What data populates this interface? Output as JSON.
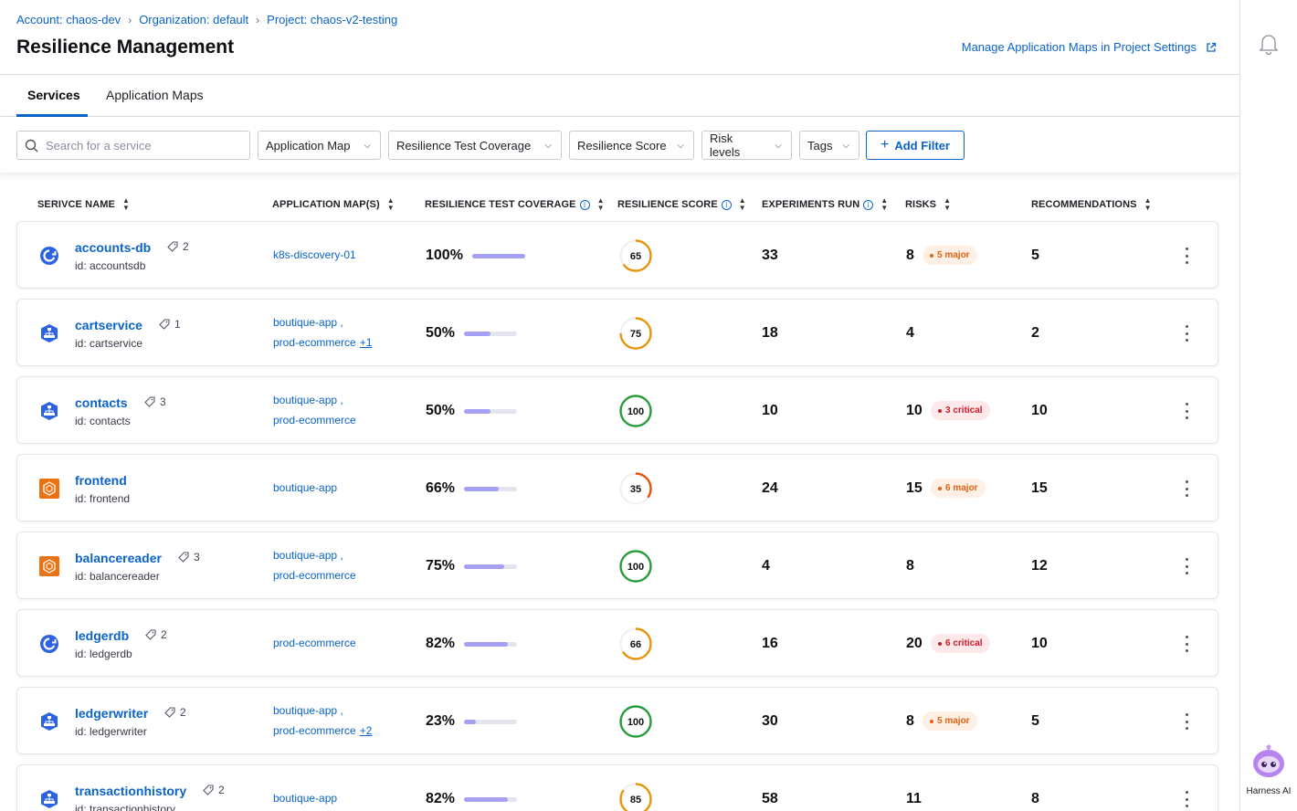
{
  "breadcrumb": {
    "account": "Account: chaos-dev",
    "org": "Organization: default",
    "project": "Project: chaos-v2-testing"
  },
  "page": {
    "title": "Resilience Management",
    "manage_link": "Manage Application Maps in Project Settings"
  },
  "tabs": [
    {
      "label": "Services",
      "active": true
    },
    {
      "label": "Application Maps",
      "active": false
    }
  ],
  "filters": {
    "search_placeholder": "Search for a service",
    "dropdowns": [
      "Application Map",
      "Resilience Test Coverage",
      "Resilience Score",
      "Risk levels",
      "Tags"
    ],
    "add_filter": "Add Filter"
  },
  "columns": {
    "name": "SERIVCE NAME",
    "maps": "APPLICATION MAP(S)",
    "coverage": "RESILIENCE TEST COVERAGE",
    "score": "RESILIENCE SCORE",
    "experiments": "EXPERIMENTS RUN",
    "risks": "RISKS",
    "recommendations": "RECOMMENDATIONS"
  },
  "colors": {
    "accent": "#0a63c9",
    "score_green": "#2a9c3c",
    "score_orange": "#e8950c",
    "score_red": "#e8500c"
  },
  "services": [
    {
      "name": "accounts-db",
      "tags": "2",
      "id": "id: accountsdb",
      "icon": "k8s-circle-icon",
      "maps": [
        "k8s-discovery-01"
      ],
      "maps_more": "",
      "coverage": "100%",
      "coverage_value": 100,
      "score": "65",
      "score_value": 65,
      "experiments": "33",
      "risks": "8",
      "risk_badge": "5 major",
      "risk_level": "major",
      "recommendations": "5"
    },
    {
      "name": "cartservice",
      "tags": "1",
      "id": "id: cartservice",
      "icon": "k8s-hex-icon",
      "maps": [
        "boutique-app ,",
        "prod-ecommerce"
      ],
      "maps_more": "+1",
      "coverage": "50%",
      "coverage_value": 50,
      "score": "75",
      "score_value": 75,
      "experiments": "18",
      "risks": "4",
      "risk_badge": "",
      "risk_level": "",
      "recommendations": "2"
    },
    {
      "name": "contacts",
      "tags": "3",
      "id": "id: contacts",
      "icon": "k8s-hex-icon",
      "maps": [
        "boutique-app ,",
        "prod-ecommerce"
      ],
      "maps_more": "",
      "coverage": "50%",
      "coverage_value": 50,
      "score": "100",
      "score_value": 100,
      "experiments": "10",
      "risks": "10",
      "risk_badge": "3 critical",
      "risk_level": "critical",
      "recommendations": "10"
    },
    {
      "name": "frontend",
      "tags": "",
      "id": "id: frontend",
      "icon": "aws-icon",
      "maps": [
        "boutique-app"
      ],
      "maps_more": "",
      "coverage": "66%",
      "coverage_value": 66,
      "score": "35",
      "score_value": 35,
      "experiments": "24",
      "risks": "15",
      "risk_badge": "6 major",
      "risk_level": "major",
      "recommendations": "15"
    },
    {
      "name": "balancereader",
      "tags": "3",
      "id": "id: balancereader",
      "icon": "aws-icon",
      "maps": [
        "boutique-app ,",
        "prod-ecommerce"
      ],
      "maps_more": "",
      "coverage": "75%",
      "coverage_value": 75,
      "score": "100",
      "score_value": 100,
      "experiments": "4",
      "risks": "8",
      "risk_badge": "",
      "risk_level": "",
      "recommendations": "12"
    },
    {
      "name": "ledgerdb",
      "tags": "2",
      "id": "id: ledgerdb",
      "icon": "k8s-circle-icon",
      "maps": [
        "prod-ecommerce"
      ],
      "maps_more": "",
      "coverage": "82%",
      "coverage_value": 82,
      "score": "66",
      "score_value": 66,
      "experiments": "16",
      "risks": "20",
      "risk_badge": "6 critical",
      "risk_level": "critical",
      "recommendations": "10"
    },
    {
      "name": "ledgerwriter",
      "tags": "2",
      "id": "id: ledgerwriter",
      "icon": "k8s-hex-icon",
      "maps": [
        "boutique-app ,",
        "prod-ecommerce"
      ],
      "maps_more": "+2",
      "coverage": "23%",
      "coverage_value": 23,
      "score": "100",
      "score_value": 100,
      "experiments": "30",
      "risks": "8",
      "risk_badge": "5 major",
      "risk_level": "major",
      "recommendations": "5"
    },
    {
      "name": "transactionhistory",
      "tags": "2",
      "id": "id: transactionhistory",
      "icon": "k8s-hex-icon",
      "maps": [
        "boutique-app"
      ],
      "maps_more": "",
      "coverage": "82%",
      "coverage_value": 82,
      "score": "85",
      "score_value": 85,
      "experiments": "58",
      "risks": "11",
      "risk_badge": "",
      "risk_level": "",
      "recommendations": "8"
    }
  ],
  "assistant": {
    "label": "Harness AI"
  }
}
